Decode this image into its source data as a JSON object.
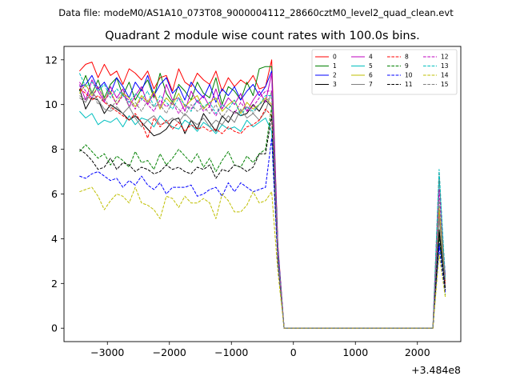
{
  "figure": {
    "suptitle": "Data file: modeM0/AS1A10_073T08_9000004112_28660cztM0_level2_quad_clean.evt",
    "x_offset_label": "+3.484e8"
  },
  "chart_data": {
    "type": "line",
    "title": "Quadrant 2 module wise count rates with 100.0s bins.",
    "xlabel": "",
    "ylabel": "",
    "xlim": [
      -3700,
      2700
    ],
    "ylim": [
      -0.6,
      12.6
    ],
    "x_ticks": [
      -3000,
      -2000,
      -1000,
      0,
      1000,
      2000
    ],
    "x_tick_labels": [
      "−3000",
      "−2000",
      "−1000",
      "0",
      "1000",
      "2000"
    ],
    "y_ticks": [
      0,
      2,
      4,
      6,
      8,
      10,
      12
    ],
    "y_tick_labels": [
      "0",
      "2",
      "4",
      "6",
      "8",
      "10",
      "12"
    ],
    "grid": false,
    "legend_placement": "top-right",
    "legend_columns": 4,
    "x": [
      -3450,
      -3350,
      -3250,
      -3150,
      -3050,
      -2950,
      -2850,
      -2750,
      -2650,
      -2550,
      -2450,
      -2350,
      -2250,
      -2150,
      -2050,
      -1950,
      -1850,
      -1750,
      -1650,
      -1550,
      -1450,
      -1350,
      -1250,
      -1150,
      -1050,
      -950,
      -850,
      -750,
      -650,
      -550,
      -450,
      -350,
      -250,
      -150,
      -50,
      50,
      150,
      250,
      350,
      450,
      550,
      650,
      750,
      850,
      950,
      1050,
      1150,
      1250,
      1350,
      1450,
      1550,
      1650,
      1750,
      1850,
      1950,
      2050,
      2150,
      2250,
      2350,
      2450
    ],
    "series": [
      {
        "name": "0",
        "color": "#ff0000",
        "dash": "solid",
        "values": [
          11.5,
          11.8,
          11.9,
          11.2,
          11.8,
          11.3,
          11.5,
          10.9,
          11.6,
          11.4,
          11.1,
          11.5,
          10.7,
          11.2,
          11.3,
          10.6,
          11.6,
          11.0,
          10.8,
          11.4,
          11.1,
          10.9,
          11.5,
          10.6,
          11.2,
          10.8,
          11.1,
          10.9,
          11.3,
          10.7,
          10.8,
          12.0,
          3.7,
          0.0,
          0.0,
          0.0,
          0.0,
          0.0,
          0.0,
          0.0,
          0.0,
          0.0,
          0.0,
          0.0,
          0.0,
          0.0,
          0.0,
          0.0,
          0.0,
          0.0,
          0.0,
          0.0,
          0.0,
          0.0,
          0.0,
          0.0,
          0.0,
          0.0,
          4.2,
          2.4
        ]
      },
      {
        "name": "1",
        "color": "#008000",
        "dash": "solid",
        "values": [
          10.6,
          11.3,
          10.5,
          11.1,
          10.3,
          10.9,
          11.2,
          10.4,
          11.0,
          10.2,
          10.7,
          11.1,
          10.3,
          11.4,
          10.5,
          10.1,
          10.9,
          10.6,
          10.2,
          11.0,
          10.5,
          10.3,
          11.2,
          10.0,
          10.8,
          10.6,
          10.2,
          11.0,
          10.4,
          11.6,
          11.7,
          11.7,
          3.5,
          0.0,
          0.0,
          0.0,
          0.0,
          0.0,
          0.0,
          0.0,
          0.0,
          0.0,
          0.0,
          0.0,
          0.0,
          0.0,
          0.0,
          0.0,
          0.0,
          0.0,
          0.0,
          0.0,
          0.0,
          0.0,
          0.0,
          0.0,
          0.0,
          0.0,
          4.4,
          2.0
        ]
      },
      {
        "name": "2",
        "color": "#0000ff",
        "dash": "solid",
        "values": [
          10.8,
          10.9,
          11.3,
          10.7,
          11.0,
          10.5,
          11.2,
          10.8,
          10.3,
          11.0,
          10.6,
          11.3,
          10.4,
          10.9,
          11.2,
          10.5,
          10.8,
          10.2,
          11.0,
          10.6,
          10.3,
          10.9,
          10.1,
          10.7,
          10.4,
          10.8,
          10.2,
          10.6,
          10.9,
          10.4,
          10.8,
          11.5,
          3.6,
          0.0,
          0.0,
          0.0,
          0.0,
          0.0,
          0.0,
          0.0,
          0.0,
          0.0,
          0.0,
          0.0,
          0.0,
          0.0,
          0.0,
          0.0,
          0.0,
          0.0,
          0.0,
          0.0,
          0.0,
          0.0,
          0.0,
          0.0,
          0.0,
          0.0,
          3.8,
          2.2
        ]
      },
      {
        "name": "3",
        "color": "#000000",
        "dash": "solid",
        "values": [
          10.7,
          9.8,
          10.3,
          10.2,
          9.6,
          10.0,
          9.8,
          9.6,
          9.3,
          9.5,
          9.2,
          8.9,
          8.6,
          8.7,
          8.9,
          9.3,
          9.4,
          8.7,
          9.3,
          8.9,
          9.6,
          9.2,
          8.8,
          9.5,
          9.2,
          9.7,
          9.5,
          9.6,
          10.0,
          9.7,
          10.2,
          9.9,
          3.3,
          0.0,
          0.0,
          0.0,
          0.0,
          0.0,
          0.0,
          0.0,
          0.0,
          0.0,
          0.0,
          0.0,
          0.0,
          0.0,
          0.0,
          0.0,
          0.0,
          0.0,
          0.0,
          0.0,
          0.0,
          0.0,
          0.0,
          0.0,
          0.0,
          0.0,
          4.4,
          1.8
        ]
      },
      {
        "name": "4",
        "color": "#bf00bf",
        "dash": "solid",
        "values": [
          10.9,
          10.2,
          11.1,
          10.6,
          10.1,
          10.8,
          10.3,
          10.7,
          9.9,
          10.4,
          10.8,
          10.0,
          10.5,
          9.8,
          10.9,
          10.2,
          10.3,
          9.7,
          10.6,
          10.1,
          10.4,
          9.9,
          10.7,
          9.8,
          10.3,
          10.0,
          10.5,
          9.7,
          10.2,
          10.6,
          10.1,
          11.4,
          3.4,
          0.0,
          0.0,
          0.0,
          0.0,
          0.0,
          0.0,
          0.0,
          0.0,
          0.0,
          0.0,
          0.0,
          0.0,
          0.0,
          0.0,
          0.0,
          0.0,
          0.0,
          0.0,
          0.0,
          0.0,
          0.0,
          0.0,
          0.0,
          0.0,
          0.0,
          5.2,
          2.3
        ]
      },
      {
        "name": "5",
        "color": "#00bfbf",
        "dash": "solid",
        "values": [
          9.7,
          9.4,
          9.6,
          9.1,
          9.3,
          9.2,
          9.4,
          9.0,
          9.5,
          9.1,
          9.4,
          9.3,
          9.0,
          9.5,
          9.2,
          9.0,
          8.9,
          9.3,
          9.1,
          8.8,
          9.2,
          9.0,
          8.7,
          9.1,
          8.9,
          9.0,
          8.8,
          9.3,
          9.0,
          9.2,
          9.4,
          8.8,
          3.2,
          0.0,
          0.0,
          0.0,
          0.0,
          0.0,
          0.0,
          0.0,
          0.0,
          0.0,
          0.0,
          0.0,
          0.0,
          0.0,
          0.0,
          0.0,
          0.0,
          0.0,
          0.0,
          0.0,
          0.0,
          0.0,
          0.0,
          0.0,
          0.0,
          0.0,
          6.8,
          2.0
        ]
      },
      {
        "name": "6",
        "color": "#bfbf00",
        "dash": "solid",
        "values": [
          10.5,
          10.9,
          10.4,
          10.8,
          10.2,
          10.6,
          10.0,
          10.5,
          10.3,
          9.9,
          10.4,
          10.1,
          10.6,
          9.8,
          10.3,
          10.0,
          10.5,
          9.9,
          10.2,
          10.4,
          9.8,
          10.1,
          10.3,
          9.7,
          10.0,
          10.2,
          9.6,
          10.1,
          9.8,
          10.0,
          10.3,
          10.0,
          3.1,
          0.0,
          0.0,
          0.0,
          0.0,
          0.0,
          0.0,
          0.0,
          0.0,
          0.0,
          0.0,
          0.0,
          0.0,
          0.0,
          0.0,
          0.0,
          0.0,
          0.0,
          0.0,
          0.0,
          0.0,
          0.0,
          0.0,
          0.0,
          0.0,
          0.0,
          5.4,
          2.1
        ]
      },
      {
        "name": "7",
        "color": "#808080",
        "dash": "solid",
        "values": [
          10.3,
          10.1,
          10.6,
          10.2,
          9.8,
          9.7,
          9.9,
          9.6,
          9.9,
          9.4,
          9.0,
          9.3,
          9.5,
          9.1,
          9.2,
          9.4,
          9.2,
          9.6,
          9.3,
          9.1,
          9.4,
          9.0,
          9.3,
          9.1,
          9.5,
          9.2,
          9.8,
          9.4,
          9.6,
          9.3,
          9.7,
          10.6,
          3.4,
          0.0,
          0.0,
          0.0,
          0.0,
          0.0,
          0.0,
          0.0,
          0.0,
          0.0,
          0.0,
          0.0,
          0.0,
          0.0,
          0.0,
          0.0,
          0.0,
          0.0,
          0.0,
          0.0,
          0.0,
          0.0,
          0.0,
          0.0,
          0.0,
          0.0,
          4.9,
          1.9
        ]
      },
      {
        "name": "8",
        "color": "#ff0000",
        "dash": "dashed",
        "values": [
          10.7,
          10.5,
          10.2,
          10.4,
          10.1,
          9.9,
          9.7,
          9.5,
          9.3,
          9.6,
          9.2,
          8.5,
          9.4,
          9.0,
          9.3,
          8.9,
          9.2,
          8.8,
          9.1,
          8.9,
          9.0,
          8.8,
          8.9,
          8.7,
          9.0,
          8.8,
          8.7,
          9.0,
          9.1,
          9.3,
          9.8,
          9.5,
          3.2,
          0.0,
          0.0,
          0.0,
          0.0,
          0.0,
          0.0,
          0.0,
          0.0,
          0.0,
          0.0,
          0.0,
          0.0,
          0.0,
          0.0,
          0.0,
          0.0,
          0.0,
          0.0,
          0.0,
          0.0,
          0.0,
          0.0,
          0.0,
          0.0,
          0.0,
          7.0,
          2.0
        ]
      },
      {
        "name": "9",
        "color": "#008000",
        "dash": "dashed",
        "values": [
          7.9,
          8.2,
          7.9,
          7.6,
          7.8,
          7.3,
          7.7,
          7.5,
          7.2,
          7.9,
          7.4,
          7.5,
          7.1,
          7.8,
          7.3,
          7.6,
          8.0,
          7.7,
          7.4,
          7.8,
          7.2,
          7.6,
          7.0,
          7.5,
          7.9,
          7.3,
          7.2,
          7.7,
          7.4,
          7.8,
          8.0,
          9.9,
          3.0,
          0.0,
          0.0,
          0.0,
          0.0,
          0.0,
          0.0,
          0.0,
          0.0,
          0.0,
          0.0,
          0.0,
          0.0,
          0.0,
          0.0,
          0.0,
          0.0,
          0.0,
          0.0,
          0.0,
          0.0,
          0.0,
          0.0,
          0.0,
          0.0,
          0.0,
          4.1,
          1.5
        ]
      },
      {
        "name": "10",
        "color": "#0000ff",
        "dash": "dashed",
        "values": [
          6.8,
          6.7,
          6.9,
          7.0,
          6.8,
          6.6,
          6.7,
          6.3,
          6.6,
          6.4,
          6.8,
          6.4,
          6.2,
          6.5,
          6.0,
          6.3,
          6.3,
          6.3,
          6.4,
          5.9,
          6.0,
          6.2,
          6.3,
          5.9,
          6.5,
          6.1,
          6.5,
          6.3,
          6.1,
          6.2,
          6.3,
          8.5,
          2.9,
          0.0,
          0.0,
          0.0,
          0.0,
          0.0,
          0.0,
          0.0,
          0.0,
          0.0,
          0.0,
          0.0,
          0.0,
          0.0,
          0.0,
          0.0,
          0.0,
          0.0,
          0.0,
          0.0,
          0.0,
          0.0,
          0.0,
          0.0,
          0.0,
          0.0,
          3.6,
          1.6
        ]
      },
      {
        "name": "11",
        "color": "#000000",
        "dash": "dashed",
        "values": [
          8.0,
          7.8,
          7.5,
          7.1,
          7.2,
          7.6,
          7.1,
          7.4,
          7.3,
          7.0,
          7.2,
          7.1,
          6.9,
          7.0,
          7.3,
          7.1,
          7.2,
          7.0,
          6.9,
          7.2,
          7.1,
          7.3,
          6.7,
          7.1,
          7.0,
          7.3,
          7.2,
          7.0,
          7.2,
          7.8,
          7.8,
          9.5,
          3.1,
          0.0,
          0.0,
          0.0,
          0.0,
          0.0,
          0.0,
          0.0,
          0.0,
          0.0,
          0.0,
          0.0,
          0.0,
          0.0,
          0.0,
          0.0,
          0.0,
          0.0,
          0.0,
          0.0,
          0.0,
          0.0,
          0.0,
          0.0,
          0.0,
          0.0,
          4.3,
          1.7
        ]
      },
      {
        "name": "12",
        "color": "#bf00bf",
        "dash": "dashed",
        "values": [
          11.0,
          10.6,
          10.3,
          10.8,
          10.2,
          10.5,
          10.0,
          10.4,
          10.2,
          9.8,
          10.3,
          10.0,
          9.7,
          10.2,
          9.9,
          10.1,
          9.6,
          10.0,
          9.8,
          10.2,
          9.7,
          9.9,
          9.5,
          10.0,
          9.8,
          9.6,
          10.1,
          9.7,
          9.9,
          10.3,
          10.6,
          10.6,
          3.3,
          0.0,
          0.0,
          0.0,
          0.0,
          0.0,
          0.0,
          0.0,
          0.0,
          0.0,
          0.0,
          0.0,
          0.0,
          0.0,
          0.0,
          0.0,
          0.0,
          0.0,
          0.0,
          0.0,
          0.0,
          0.0,
          0.0,
          0.0,
          0.0,
          0.0,
          6.2,
          2.4
        ]
      },
      {
        "name": "13",
        "color": "#00bfbf",
        "dash": "dashed",
        "values": [
          11.4,
          10.8,
          11.0,
          10.6,
          10.9,
          10.3,
          10.7,
          10.4,
          10.1,
          10.5,
          10.2,
          10.6,
          9.9,
          10.4,
          10.1,
          9.8,
          10.3,
          10.0,
          9.7,
          10.2,
          9.9,
          10.1,
          9.6,
          10.0,
          9.8,
          10.2,
          9.5,
          9.9,
          9.7,
          10.0,
          10.4,
          10.4,
          3.4,
          0.0,
          0.0,
          0.0,
          0.0,
          0.0,
          0.0,
          0.0,
          0.0,
          0.0,
          0.0,
          0.0,
          0.0,
          0.0,
          0.0,
          0.0,
          0.0,
          0.0,
          0.0,
          0.0,
          0.0,
          0.0,
          0.0,
          0.0,
          0.0,
          0.0,
          7.1,
          2.2
        ]
      },
      {
        "name": "14",
        "color": "#bfbf00",
        "dash": "dashed",
        "values": [
          6.1,
          6.2,
          6.3,
          5.9,
          5.3,
          5.7,
          6.0,
          5.9,
          5.6,
          6.3,
          5.6,
          5.5,
          5.3,
          4.9,
          5.9,
          5.8,
          5.4,
          5.9,
          5.6,
          5.6,
          5.8,
          5.6,
          4.9,
          6.0,
          5.7,
          5.2,
          5.2,
          5.5,
          6.1,
          5.6,
          5.7,
          6.1,
          2.5,
          0.0,
          0.0,
          0.0,
          0.0,
          0.0,
          0.0,
          0.0,
          0.0,
          0.0,
          0.0,
          0.0,
          0.0,
          0.0,
          0.0,
          0.0,
          0.0,
          0.0,
          0.0,
          0.0,
          0.0,
          0.0,
          0.0,
          0.0,
          0.0,
          0.0,
          3.3,
          1.4
        ]
      },
      {
        "name": "15",
        "color": "#808080",
        "dash": "dashed",
        "values": [
          10.4,
          10.2,
          10.6,
          10.0,
          10.3,
          9.8,
          10.2,
          10.5,
          9.9,
          10.1,
          9.7,
          10.2,
          9.9,
          10.0,
          9.6,
          10.1,
          9.8,
          9.5,
          10.0,
          9.7,
          9.9,
          9.6,
          10.0,
          9.4,
          9.8,
          9.6,
          9.7,
          9.9,
          9.6,
          10.0,
          10.2,
          10.3,
          3.3,
          0.0,
          0.0,
          0.0,
          0.0,
          0.0,
          0.0,
          0.0,
          0.0,
          0.0,
          0.0,
          0.0,
          0.0,
          0.0,
          0.0,
          0.0,
          0.0,
          0.0,
          0.0,
          0.0,
          0.0,
          0.0,
          0.0,
          0.0,
          0.0,
          0.0,
          5.8,
          2.1
        ]
      }
    ]
  }
}
